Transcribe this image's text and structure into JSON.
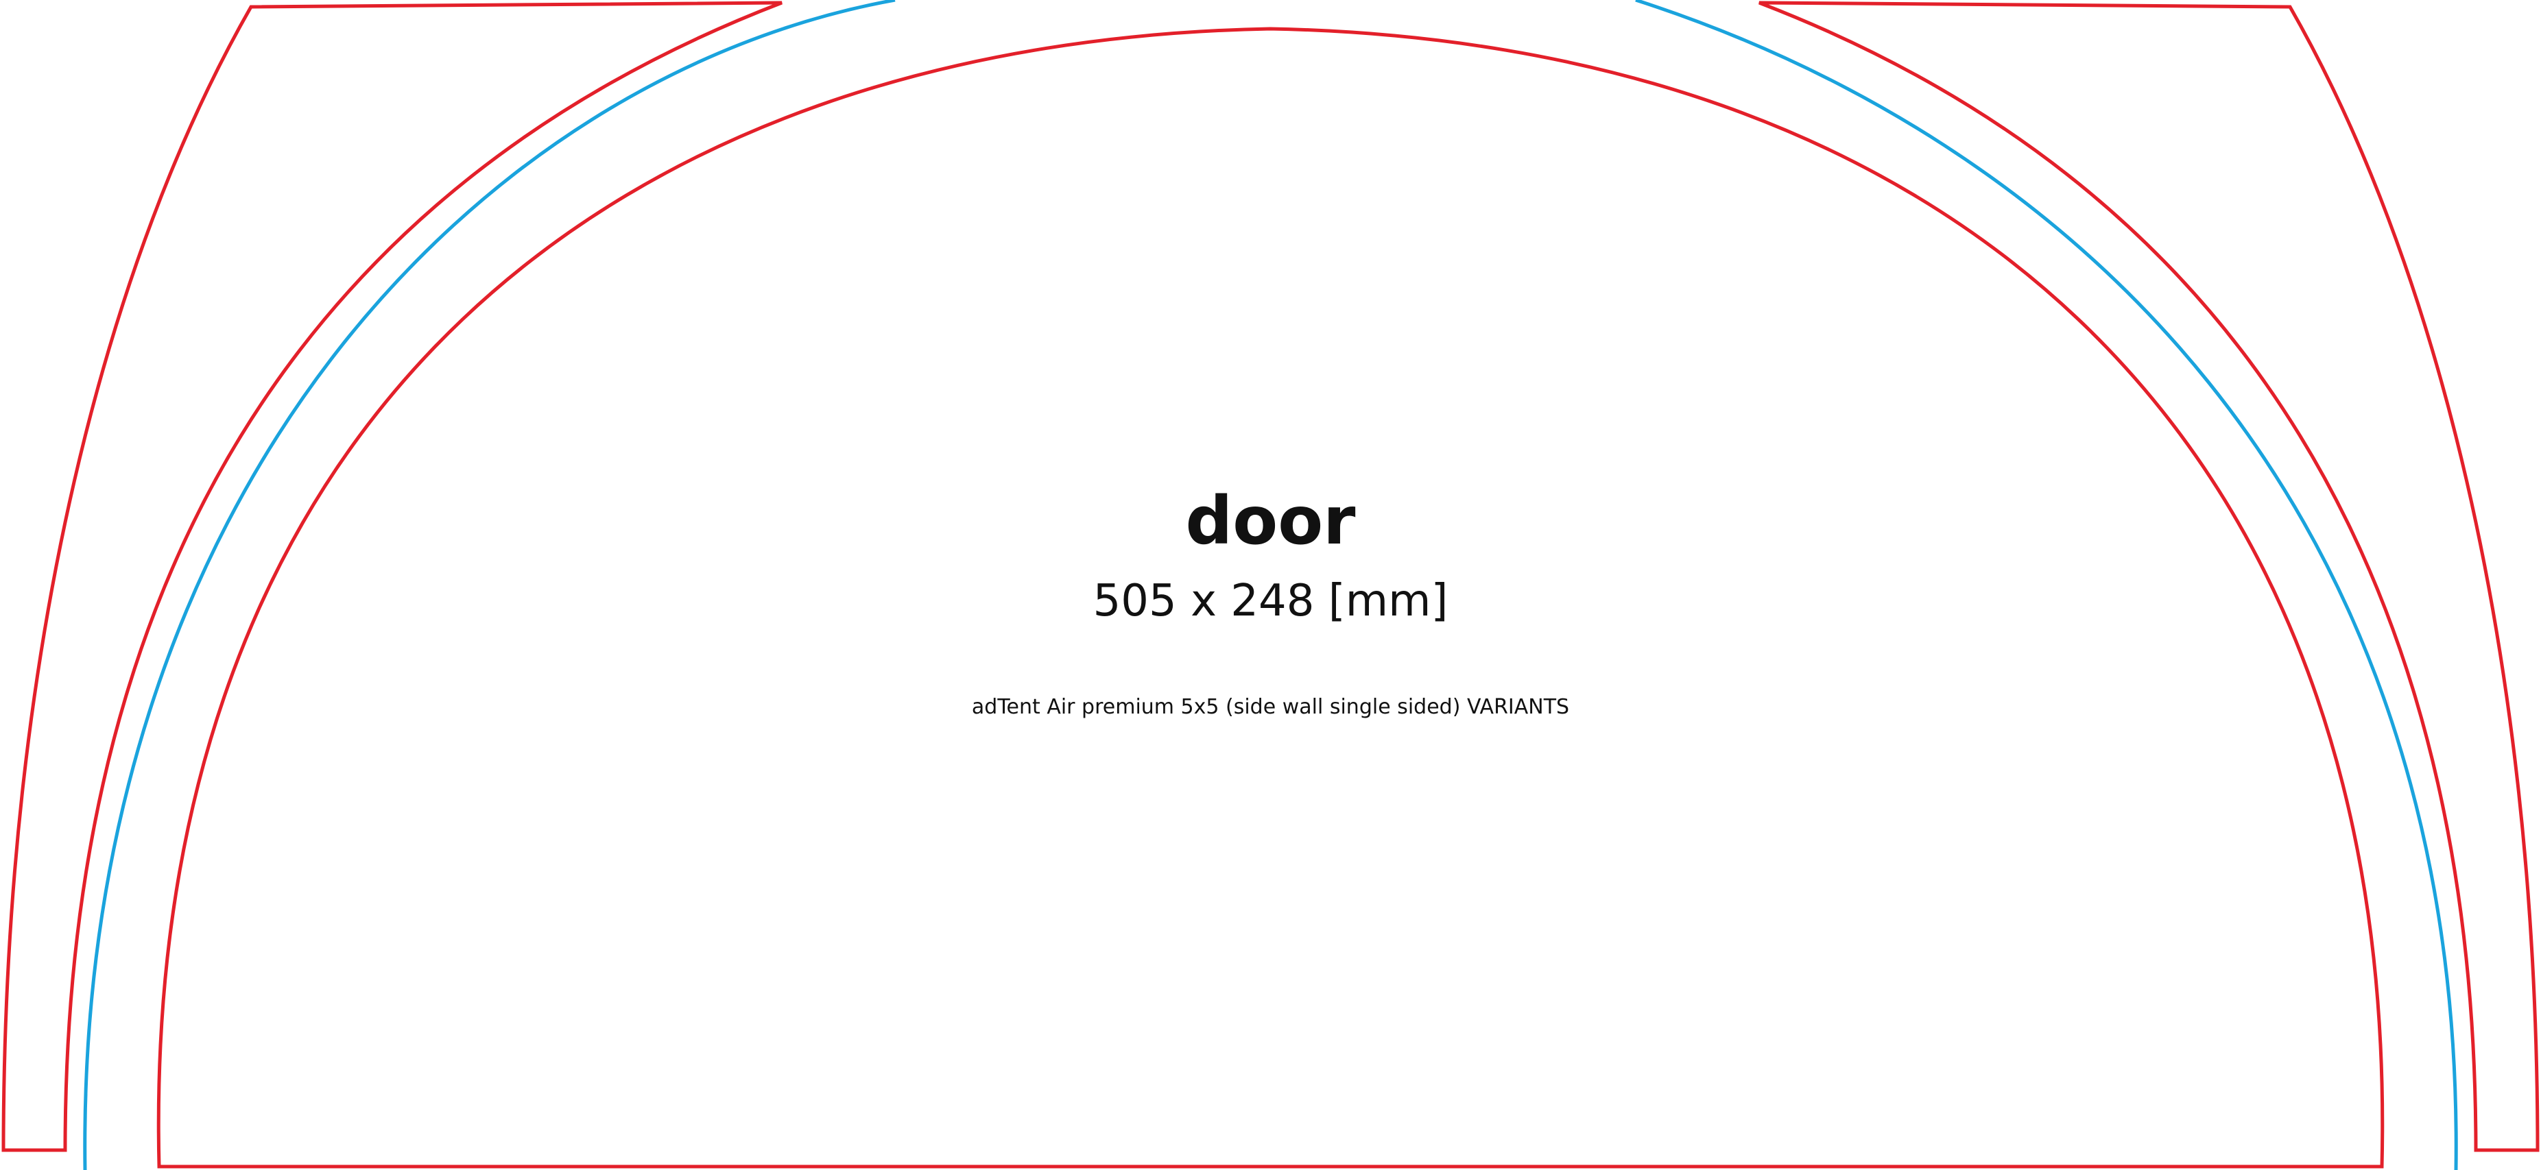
{
  "template": {
    "title": "door",
    "dimensions": "505 x 248 [mm]",
    "product": "adTent Air premium 5x5 (side wall single sided) VARIANTS"
  },
  "colors": {
    "cut_line": "#e3202a",
    "bleed_line": "#1aa3dd",
    "text": "#111111",
    "background": "#ffffff"
  }
}
